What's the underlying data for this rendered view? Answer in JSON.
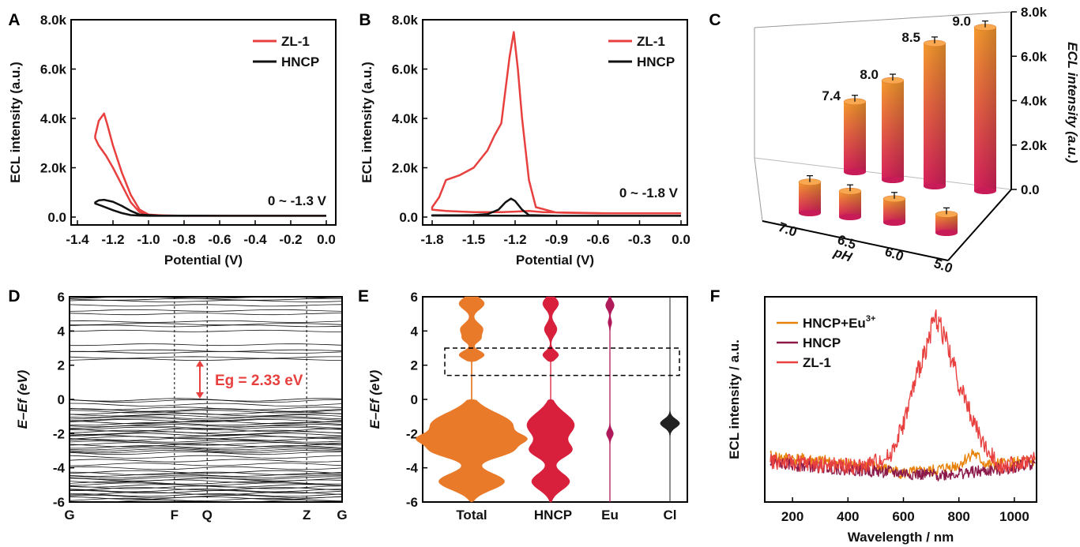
{
  "colors": {
    "zl1": "#e8403f",
    "hncp": "#111111",
    "hncp_f": "#8b1a4a",
    "hncp_eu_f": "#e8830a",
    "total": "#e87a2a",
    "hncp_dos": "#d8203c",
    "eu": "#b01a5a",
    "cl": "#222222",
    "bar_top": "#f58a2e",
    "bar_bottom": "#d8205c"
  },
  "chart_data": [
    {
      "panel": "A",
      "type": "line",
      "xlabel": "Potential (V)",
      "ylabel": "ECL intensity (a.u.)",
      "xlim": [
        -1.4,
        0.0
      ],
      "ylim": [
        0,
        8000
      ],
      "xticks": [
        "-1.4",
        "-1.2",
        "-1.0",
        "-0.8",
        "-0.6",
        "-0.4",
        "-0.2",
        "0.0"
      ],
      "yticks": [
        "0.0",
        "2.0k",
        "4.0k",
        "6.0k",
        "8.0k"
      ],
      "annotation": "0 ~ -1.3 V",
      "legend": [
        "ZL-1",
        "HNCP"
      ],
      "series": [
        {
          "name": "ZL-1",
          "x": [
            0.0,
            -0.5,
            -0.9,
            -1.0,
            -1.05,
            -1.1,
            -1.15,
            -1.2,
            -1.23,
            -1.25,
            -1.28,
            -1.3,
            -1.3,
            -1.28,
            -1.24,
            -1.2,
            -1.15,
            -1.1,
            -1.05,
            -1.0,
            -0.8,
            -0.4,
            0.0
          ],
          "y": [
            50,
            50,
            60,
            100,
            300,
            900,
            1800,
            2900,
            3700,
            4200,
            3900,
            3300,
            3200,
            2900,
            2500,
            2000,
            1300,
            600,
            200,
            80,
            50,
            50,
            50
          ]
        },
        {
          "name": "HNCP",
          "x": [
            0.0,
            -0.6,
            -0.95,
            -1.05,
            -1.1,
            -1.15,
            -1.2,
            -1.25,
            -1.28,
            -1.3,
            -1.3,
            -1.25,
            -1.2,
            -1.15,
            -1.1,
            -1.05,
            -1.0,
            -0.9,
            0.0
          ],
          "y": [
            50,
            50,
            60,
            100,
            250,
            450,
            620,
            700,
            680,
            600,
            550,
            420,
            280,
            160,
            80,
            60,
            50,
            50,
            50
          ]
        }
      ]
    },
    {
      "panel": "B",
      "type": "line",
      "xlabel": "Potential (V)",
      "ylabel": "ECL intensity (a.u.)",
      "xlim": [
        -1.8,
        0.0
      ],
      "ylim": [
        0,
        8000
      ],
      "xticks": [
        "-1.8",
        "-1.5",
        "-1.2",
        "-0.9",
        "-0.6",
        "-0.3",
        "0.0"
      ],
      "yticks": [
        "0.0",
        "2.0k",
        "4.0k",
        "6.0k",
        "8.0k"
      ],
      "annotation": "0 ~ -1.8 V",
      "legend": [
        "ZL-1",
        "HNCP"
      ],
      "series": [
        {
          "name": "ZL-1",
          "x": [
            0.0,
            -0.6,
            -0.9,
            -1.05,
            -1.1,
            -1.15,
            -1.18,
            -1.21,
            -1.24,
            -1.3,
            -1.35,
            -1.4,
            -1.5,
            -1.6,
            -1.7,
            -1.75,
            -1.8,
            -1.8,
            -1.7,
            -1.5,
            -1.3,
            -1.2,
            -1.1,
            -1.0,
            -0.5,
            0.0
          ],
          "y": [
            150,
            150,
            180,
            400,
            1500,
            4000,
            6000,
            7500,
            6500,
            3800,
            3300,
            2700,
            2000,
            1700,
            1500,
            800,
            400,
            300,
            250,
            200,
            200,
            220,
            250,
            200,
            150,
            150
          ]
        },
        {
          "name": "HNCP",
          "x": [
            0.0,
            -0.9,
            -1.1,
            -1.15,
            -1.2,
            -1.23,
            -1.27,
            -1.32,
            -1.4,
            -1.5,
            -1.6,
            -1.7,
            -1.8,
            -1.8,
            -1.0,
            0.0
          ],
          "y": [
            50,
            50,
            80,
            300,
            650,
            750,
            600,
            300,
            120,
            80,
            70,
            70,
            70,
            60,
            50,
            50
          ]
        }
      ]
    },
    {
      "panel": "C",
      "type": "bar",
      "xlabel": "pH",
      "ylabel": "ECL intensity (a.u.)",
      "zlim": [
        0,
        8000
      ],
      "zticks": [
        "0.0",
        "2.0k",
        "4.0k",
        "6.0k",
        "8.0k"
      ],
      "categories": [
        "7.0",
        "6.5",
        "6.0",
        "5.0"
      ],
      "bar_labels": [
        "7.4",
        "8.0",
        "8.5",
        "9.0"
      ],
      "bars": [
        {
          "label": "",
          "category": "7.0",
          "value": 1500
        },
        {
          "label": "",
          "category": "6.5",
          "value": 1250
        },
        {
          "label": "",
          "category": "6.0",
          "value": 1150
        },
        {
          "label": "",
          "category": "5.0",
          "value": 900
        },
        {
          "label": "7.4",
          "category": "",
          "value": 3400
        },
        {
          "label": "8.0",
          "category": "",
          "value": 4800
        },
        {
          "label": "8.5",
          "category": "",
          "value": 6900
        },
        {
          "label": "9.0",
          "category": "",
          "value": 7900
        }
      ]
    },
    {
      "panel": "D",
      "type": "line",
      "ylabel": "E–Ef (eV)",
      "ylim": [
        -6,
        6
      ],
      "yticks": [
        "-6",
        "-4",
        "-2",
        "0",
        "2",
        "4",
        "6"
      ],
      "kpoints": [
        "G",
        "F",
        "Q",
        "Z",
        "G"
      ],
      "kpos": [
        0.0,
        0.385,
        0.505,
        0.87,
        1.0
      ],
      "annotation": "Eg = 2.33 eV",
      "band_gap": 2.33,
      "valence_max": 0.0,
      "conduction_min": 2.33
    },
    {
      "panel": "E",
      "type": "area",
      "ylabel": "E–Ef (eV)",
      "ylim": [
        -6,
        6
      ],
      "yticks": [
        "-6",
        "-4",
        "-2",
        "0",
        "2",
        "4",
        "6"
      ],
      "labels": [
        "Total",
        "HNCP",
        "Eu",
        "Cl"
      ],
      "highlight": [
        1.4,
        3.0
      ]
    },
    {
      "panel": "F",
      "type": "line",
      "xlabel": "Wavelength / nm",
      "ylabel": "ECL intensity / a.u.",
      "xlim": [
        100,
        1080
      ],
      "xticks": [
        "200",
        "400",
        "600",
        "800",
        "1000"
      ],
      "legend": [
        "HNCP+Eu",
        "HNCP",
        "ZL-1"
      ],
      "legend_sup": "3+",
      "series": [
        {
          "name": "HNCP+Eu",
          "x": [
            120,
            300,
            500,
            600,
            700,
            800,
            850,
            900,
            1000,
            1075
          ],
          "y": [
            0.22,
            0.2,
            0.17,
            0.14,
            0.15,
            0.18,
            0.24,
            0.18,
            0.19,
            0.2
          ]
        },
        {
          "name": "HNCP",
          "x": [
            120,
            300,
            500,
            600,
            700,
            800,
            900,
            1000,
            1075
          ],
          "y": [
            0.19,
            0.17,
            0.15,
            0.14,
            0.13,
            0.14,
            0.15,
            0.17,
            0.19
          ]
        },
        {
          "name": "ZL-1",
          "x": [
            120,
            300,
            450,
            550,
            600,
            650,
            700,
            720,
            750,
            800,
            850,
            900,
            950,
            1000,
            1075
          ],
          "y": [
            0.2,
            0.18,
            0.17,
            0.22,
            0.38,
            0.62,
            0.84,
            0.9,
            0.8,
            0.58,
            0.4,
            0.25,
            0.18,
            0.18,
            0.21
          ]
        }
      ]
    }
  ]
}
